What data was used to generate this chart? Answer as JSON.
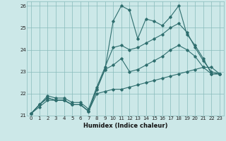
{
  "xlabel": "Humidex (Indice chaleur)",
  "xlim": [
    -0.5,
    23.5
  ],
  "ylim": [
    21,
    26.2
  ],
  "yticks": [
    21,
    22,
    23,
    24,
    25,
    26
  ],
  "xticks": [
    0,
    1,
    2,
    3,
    4,
    5,
    6,
    7,
    8,
    9,
    10,
    11,
    12,
    13,
    14,
    15,
    16,
    17,
    18,
    19,
    20,
    21,
    22,
    23
  ],
  "bg_color": "#cce8e8",
  "grid_color": "#88bbbb",
  "line_color": "#2e6e6e",
  "lines": [
    [
      21.1,
      21.5,
      21.8,
      21.7,
      21.7,
      21.5,
      21.5,
      21.2,
      22.2,
      23.1,
      25.3,
      26.0,
      25.8,
      24.5,
      25.4,
      25.3,
      25.1,
      25.5,
      26.0,
      24.7,
      24.2,
      23.6,
      22.9,
      22.9
    ],
    [
      21.1,
      21.5,
      21.9,
      21.8,
      21.8,
      21.6,
      21.6,
      21.3,
      22.3,
      23.2,
      24.1,
      24.2,
      24.0,
      24.1,
      24.3,
      24.5,
      24.7,
      25.0,
      25.2,
      24.8,
      24.1,
      23.5,
      23.0,
      22.9
    ],
    [
      21.1,
      21.5,
      21.8,
      21.7,
      21.7,
      21.5,
      21.5,
      21.2,
      22.2,
      23.1,
      23.3,
      23.6,
      23.0,
      23.1,
      23.3,
      23.5,
      23.7,
      24.0,
      24.2,
      24.0,
      23.7,
      23.2,
      22.9,
      22.9
    ],
    [
      21.1,
      21.4,
      21.7,
      21.7,
      21.7,
      21.5,
      21.5,
      21.2,
      22.0,
      22.1,
      22.2,
      22.2,
      22.3,
      22.4,
      22.5,
      22.6,
      22.7,
      22.8,
      22.9,
      23.0,
      23.1,
      23.2,
      23.2,
      22.9
    ]
  ]
}
